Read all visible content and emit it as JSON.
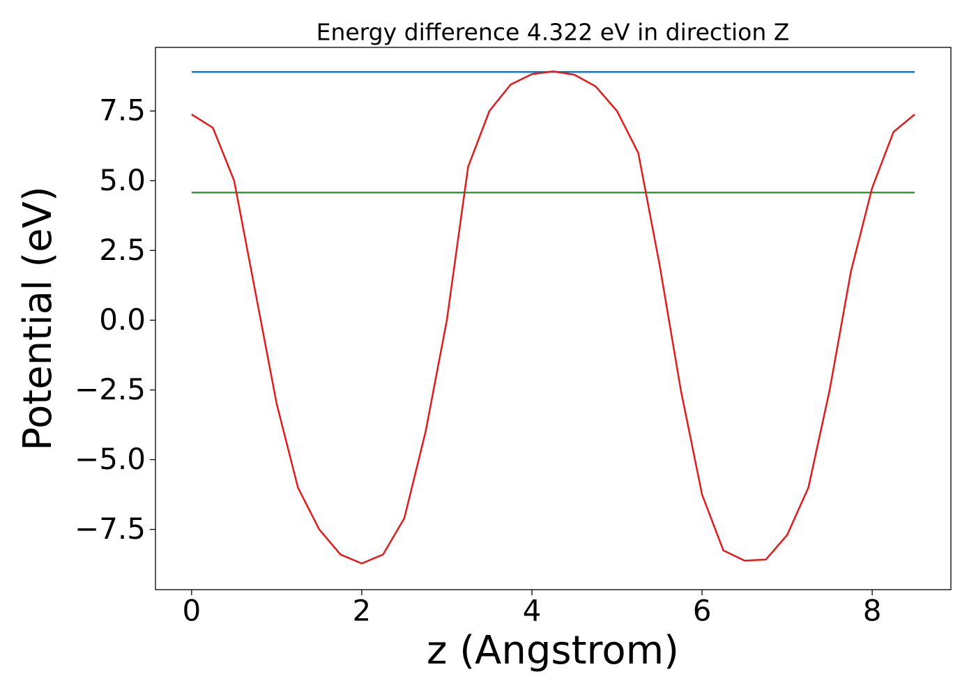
{
  "chart_data": {
    "type": "line",
    "title": "Energy difference 4.322 eV in direction Z",
    "xlabel": "z (Angstrom)",
    "ylabel": "Potential (eV)",
    "series": [
      {
        "color": "#1f77b4",
        "x": [
          0,
          8.5
        ],
        "values": [
          8.9,
          8.9
        ]
      },
      {
        "color": "#2ca02c",
        "x": [
          0,
          8.5
        ],
        "values": [
          4.578,
          4.578
        ]
      },
      {
        "color": "#e31a1c",
        "x": [
          0,
          0.25,
          0.5,
          0.75,
          1.0,
          1.25,
          1.5,
          1.75,
          2.0,
          2.25,
          2.5,
          2.75,
          3.0,
          3.25,
          3.5,
          3.75,
          4.0,
          4.25,
          4.5,
          4.75,
          5.0,
          5.25,
          5.5,
          5.75,
          6.0,
          6.25,
          6.5,
          6.75,
          7.0,
          7.25,
          7.5,
          7.75,
          8.0,
          8.25,
          8.5
        ],
        "values": [
          7.38,
          6.9,
          5.0,
          1.0,
          -3.0,
          -6.0,
          -7.5,
          -8.4,
          -8.72,
          -8.4,
          -7.1,
          -4.0,
          0.0,
          5.5,
          7.5,
          8.45,
          8.82,
          8.92,
          8.8,
          8.38,
          7.5,
          6.0,
          2.0,
          -2.5,
          -6.25,
          -8.25,
          -8.62,
          -8.58,
          -7.7,
          -6.0,
          -2.5,
          1.75,
          4.75,
          6.75,
          7.38
        ]
      }
    ],
    "xlim": [
      -0.425,
      8.925
    ],
    "ylim": [
      -9.66,
      9.78
    ],
    "xticks": [
      0,
      2,
      4,
      6,
      8
    ],
    "yticks": [
      {
        "value": -7.5,
        "label": "−7.5"
      },
      {
        "value": -5,
        "label": "−5.0"
      },
      {
        "value": -2.5,
        "label": "−2.5"
      },
      {
        "value": 0,
        "label": "0.0"
      },
      2.5,
      {
        "value": 5,
        "label": "5.0"
      },
      7.5
    ],
    "grid": false
  }
}
